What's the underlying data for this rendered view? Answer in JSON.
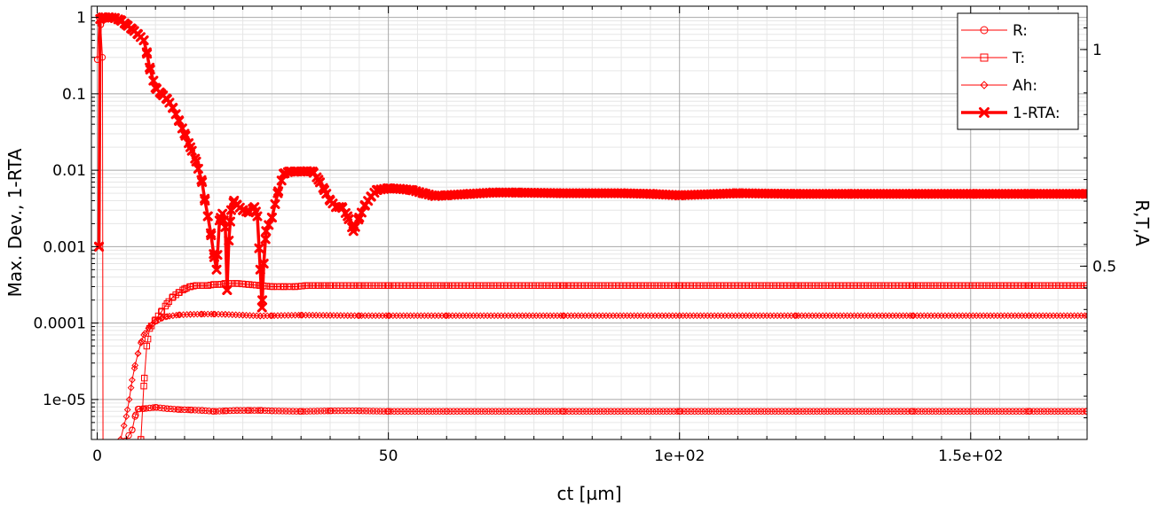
{
  "chart_data": {
    "type": "line",
    "xlabel": "ct [µm]",
    "ylabel_left": "Max. Dev., 1-RTA",
    "ylabel_right": "R,T,A",
    "xlim": [
      -1,
      170
    ],
    "ylim_left_log": [
      3e-06,
      1.4
    ],
    "ylim_right": [
      0.1,
      1.1
    ],
    "x_ticks": [
      {
        "value": 0,
        "label": "0"
      },
      {
        "value": 50,
        "label": "50"
      },
      {
        "value": 100,
        "label": "1e+02"
      },
      {
        "value": 150,
        "label": "1.5e+02"
      }
    ],
    "y_ticks_left": [
      {
        "value": 1,
        "label": "1"
      },
      {
        "value": 0.1,
        "label": "0.1"
      },
      {
        "value": 0.01,
        "label": "0.01"
      },
      {
        "value": 0.001,
        "label": "0.001"
      },
      {
        "value": 0.0001,
        "label": "0.0001"
      },
      {
        "value": 1e-05,
        "label": "1e-05"
      }
    ],
    "y_ticks_right": [
      {
        "value": 1,
        "label": "1"
      },
      {
        "value": 0.5,
        "label": "0.5"
      }
    ],
    "grid": true,
    "legend_position": "top-right",
    "color": "#ff0000",
    "series": [
      {
        "name": "R:",
        "marker": "circle",
        "points": [
          [
            0,
            0.28
          ],
          [
            0.3,
            1.0
          ],
          [
            0.6,
            0.8
          ],
          [
            0.9,
            0.3
          ],
          [
            1.0,
            1e-06
          ],
          [
            6,
            4e-06
          ],
          [
            6.5,
            6e-06
          ],
          [
            7,
            7.5e-06
          ],
          [
            8,
            7.6e-06
          ],
          [
            10,
            7.9e-06
          ],
          [
            12,
            7.6e-06
          ],
          [
            14,
            7.4e-06
          ],
          [
            16,
            7.3e-06
          ],
          [
            18,
            7.2e-06
          ],
          [
            20,
            7e-06
          ],
          [
            22,
            7.1e-06
          ],
          [
            24,
            7.2e-06
          ],
          [
            26,
            7.2e-06
          ],
          [
            28,
            7.2e-06
          ],
          [
            30,
            7.1e-06
          ],
          [
            35,
            7e-06
          ],
          [
            40,
            7.1e-06
          ],
          [
            45,
            7.1e-06
          ],
          [
            50,
            7e-06
          ],
          [
            60,
            7e-06
          ],
          [
            80,
            7e-06
          ],
          [
            100,
            7e-06
          ],
          [
            120,
            7e-06
          ],
          [
            140,
            7e-06
          ],
          [
            160,
            7e-06
          ],
          [
            170,
            7e-06
          ]
        ]
      },
      {
        "name": "T:",
        "marker": "square",
        "points": [
          [
            7.5,
            3e-06
          ],
          [
            8,
            1.5e-05
          ],
          [
            8.5,
            5e-05
          ],
          [
            9,
            8.5e-05
          ],
          [
            10,
            0.00011
          ],
          [
            11,
            0.00014
          ],
          [
            12,
            0.00018
          ],
          [
            13,
            0.00022
          ],
          [
            14,
            0.00025
          ],
          [
            15,
            0.00028
          ],
          [
            16,
            0.0003
          ],
          [
            17,
            0.00031
          ],
          [
            18,
            0.00031
          ],
          [
            19,
            0.00031
          ],
          [
            20,
            0.00032
          ],
          [
            21,
            0.00032
          ],
          [
            22,
            0.00033
          ],
          [
            24,
            0.00033
          ],
          [
            26,
            0.00032
          ],
          [
            28,
            0.00031
          ],
          [
            30,
            0.0003
          ],
          [
            32,
            0.0003
          ],
          [
            34,
            0.0003
          ],
          [
            36,
            0.00031
          ],
          [
            38,
            0.00031
          ],
          [
            40,
            0.00031
          ],
          [
            45,
            0.00031
          ],
          [
            50,
            0.00031
          ],
          [
            60,
            0.00031
          ],
          [
            80,
            0.00031
          ],
          [
            100,
            0.00031
          ],
          [
            120,
            0.00031
          ],
          [
            140,
            0.00031
          ],
          [
            160,
            0.00031
          ],
          [
            170,
            0.00031
          ]
        ]
      },
      {
        "name": "Ah:",
        "marker": "diamond",
        "points": [
          [
            4,
            3e-06
          ],
          [
            5,
            6e-06
          ],
          [
            5.5,
            1e-05
          ],
          [
            6,
            1.8e-05
          ],
          [
            6.5,
            2.8e-05
          ],
          [
            7,
            4e-05
          ],
          [
            7.5,
            5.5e-05
          ],
          [
            8,
            7e-05
          ],
          [
            9,
            9e-05
          ],
          [
            10,
            0.000105
          ],
          [
            11,
            0.000115
          ],
          [
            12,
            0.000122
          ],
          [
            14,
            0.000128
          ],
          [
            16,
            0.00013
          ],
          [
            18,
            0.000131
          ],
          [
            20,
            0.000131
          ],
          [
            22,
            0.00013
          ],
          [
            25,
            0.000127
          ],
          [
            28,
            0.000124
          ],
          [
            30,
            0.000125
          ],
          [
            35,
            0.000127
          ],
          [
            40,
            0.000126
          ],
          [
            45,
            0.000125
          ],
          [
            50,
            0.000125
          ],
          [
            60,
            0.000125
          ],
          [
            80,
            0.000125
          ],
          [
            100,
            0.000125
          ],
          [
            120,
            0.000125
          ],
          [
            140,
            0.000125
          ],
          [
            160,
            0.000125
          ],
          [
            170,
            0.000125
          ]
        ]
      },
      {
        "name": "1-RTA:",
        "marker": "x",
        "thick": true,
        "points": [
          [
            0.3,
            0.001
          ],
          [
            0.5,
            0.95
          ],
          [
            1,
            1.0
          ],
          [
            2,
            1.0
          ],
          [
            3,
            0.98
          ],
          [
            4,
            0.92
          ],
          [
            5,
            0.8
          ],
          [
            6,
            0.7
          ],
          [
            7,
            0.6
          ],
          [
            8,
            0.5
          ],
          [
            8.5,
            0.35
          ],
          [
            9,
            0.22
          ],
          [
            10,
            0.12
          ],
          [
            11,
            0.1
          ],
          [
            12,
            0.085
          ],
          [
            13,
            0.065
          ],
          [
            14,
            0.045
          ],
          [
            15,
            0.03
          ],
          [
            16,
            0.02
          ],
          [
            17,
            0.013
          ],
          [
            18,
            0.007
          ],
          [
            18.5,
            0.004
          ],
          [
            19,
            0.0025
          ],
          [
            19.5,
            0.0015
          ],
          [
            20,
            0.0008
          ],
          [
            20.5,
            0.0005
          ],
          [
            21,
            0.0022
          ],
          [
            21.5,
            0.0027
          ],
          [
            22,
            0.0018
          ],
          [
            22.3,
            0.00027
          ],
          [
            22.6,
            0.0012
          ],
          [
            23,
            0.003
          ],
          [
            23.5,
            0.004
          ],
          [
            24,
            0.0035
          ],
          [
            25,
            0.003
          ],
          [
            26,
            0.0028
          ],
          [
            27,
            0.0033
          ],
          [
            27.5,
            0.0025
          ],
          [
            28,
            0.0005
          ],
          [
            28.3,
            0.00016
          ],
          [
            28.6,
            0.0006
          ],
          [
            29,
            0.0016
          ],
          [
            30,
            0.0024
          ],
          [
            31,
            0.005
          ],
          [
            32,
            0.009
          ],
          [
            33,
            0.0096
          ],
          [
            34,
            0.0096
          ],
          [
            35,
            0.0096
          ],
          [
            36,
            0.0097
          ],
          [
            37,
            0.0096
          ],
          [
            38,
            0.0075
          ],
          [
            39,
            0.0055
          ],
          [
            40,
            0.004
          ],
          [
            41,
            0.0033
          ],
          [
            42,
            0.0033
          ],
          [
            43,
            0.0025
          ],
          [
            44,
            0.0016
          ],
          [
            45,
            0.0024
          ],
          [
            46,
            0.0035
          ],
          [
            47,
            0.0045
          ],
          [
            48,
            0.0055
          ],
          [
            50,
            0.0058
          ],
          [
            52,
            0.0057
          ],
          [
            54,
            0.0055
          ],
          [
            56,
            0.005
          ],
          [
            58,
            0.0046
          ],
          [
            60,
            0.0047
          ],
          [
            64,
            0.0049
          ],
          [
            68,
            0.0051
          ],
          [
            72,
            0.0051
          ],
          [
            80,
            0.005
          ],
          [
            90,
            0.005
          ],
          [
            95,
            0.0049
          ],
          [
            100,
            0.0047
          ],
          [
            110,
            0.005
          ],
          [
            120,
            0.0049
          ],
          [
            130,
            0.0049
          ],
          [
            140,
            0.0049
          ],
          [
            150,
            0.0049
          ],
          [
            160,
            0.0049
          ],
          [
            170,
            0.0049
          ]
        ]
      }
    ]
  }
}
